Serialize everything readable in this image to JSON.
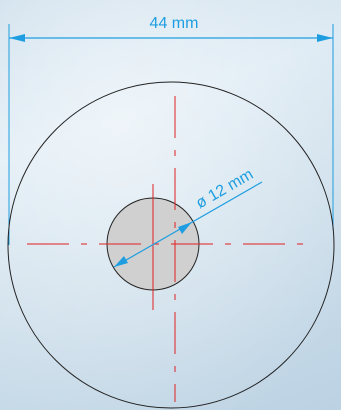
{
  "dimensions": {
    "width_label": "44 mm",
    "hole_label": "ø 12 mm"
  },
  "colors": {
    "dimension": "#1e9ee0",
    "outline": "#222222",
    "centerline": "#e02020",
    "hole_fill": "#d0d0d0"
  }
}
